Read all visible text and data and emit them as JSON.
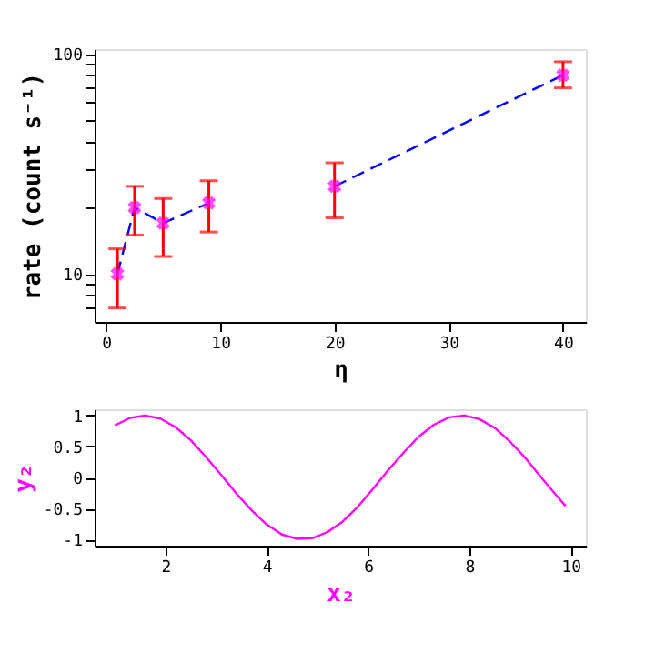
{
  "chart_data": [
    {
      "type": "scatter",
      "xlabel": "η",
      "ylabel": "rate (count s⁻¹)",
      "log": "y",
      "grid": false,
      "xlim": [
        -1,
        42
      ],
      "xticks": [
        0,
        10,
        20,
        30,
        40
      ],
      "ylim": [
        6.05,
        105
      ],
      "yticks": [
        {
          "value": 7,
          "label": null
        },
        {
          "value": 8,
          "label": null
        },
        {
          "value": 9,
          "label": null
        },
        10,
        {
          "value": 20,
          "label": null
        },
        {
          "value": 30,
          "label": null
        },
        {
          "value": 40,
          "label": null
        },
        {
          "value": 50,
          "label": null
        },
        {
          "value": 60,
          "label": null
        },
        {
          "value": 70,
          "label": null
        },
        {
          "value": 80,
          "label": null
        },
        {
          "value": 90,
          "label": null
        },
        100
      ],
      "series": [
        {
          "type": "line",
          "color": "#0000ff",
          "line_style": "dashed",
          "marker": "none",
          "x": [
            1,
            2.5,
            5,
            9,
            14,
            20,
            40
          ],
          "values": [
            10,
            20,
            17,
            21,
            null,
            25,
            80
          ]
        },
        {
          "type": "scatter",
          "color": "#ff00ff",
          "marker": "cross",
          "x": [
            1,
            2.5,
            5,
            9,
            20,
            40
          ],
          "values": [
            10,
            20,
            17,
            21,
            25,
            80
          ],
          "errors": [
            [
              7,
              13
            ],
            [
              15,
              25
            ],
            [
              12,
              22
            ],
            [
              15.5,
              26.5
            ],
            [
              18,
              32
            ],
            [
              70,
              92
            ]
          ]
        }
      ]
    },
    {
      "type": "line",
      "xlabel": "x₂",
      "ylabel": "y₂",
      "grid": false,
      "xlim": [
        0.6,
        10.3
      ],
      "xticks": [
        2,
        4,
        6,
        8,
        10
      ],
      "ylim": [
        -1.1,
        1.1
      ],
      "yticks": [
        -1,
        -0.5,
        0,
        0.5,
        1
      ],
      "series": [
        {
          "color": "#ff00ff",
          "x": [
            1.0,
            1.3,
            1.6,
            1.9,
            2.2,
            2.5,
            2.8,
            3.1,
            3.4,
            3.7,
            4.0,
            4.3,
            4.6,
            4.9,
            5.2,
            5.5,
            5.8,
            6.1,
            6.4,
            6.7,
            7.0,
            7.3,
            7.6,
            7.9,
            8.2,
            8.5,
            8.8,
            9.1,
            9.4,
            9.7,
            9.9
          ],
          "values": [
            0.84,
            0.96,
            1.0,
            0.95,
            0.81,
            0.6,
            0.33,
            0.04,
            -0.26,
            -0.53,
            -0.76,
            -0.92,
            -0.99,
            -0.98,
            -0.88,
            -0.71,
            -0.47,
            -0.18,
            0.12,
            0.4,
            0.66,
            0.85,
            0.97,
            1.0,
            0.94,
            0.8,
            0.58,
            0.32,
            0.02,
            -0.27,
            -0.46
          ]
        }
      ]
    }
  ]
}
